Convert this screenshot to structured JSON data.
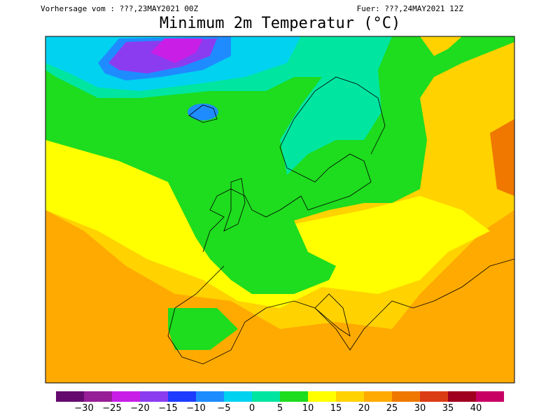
{
  "header": {
    "left": "Vorhersage vom : ???,23MAY2021 00Z",
    "right": "Fuer: ???,24MAY2021 12Z",
    "title": "Minimum 2m Temperatur (°C)"
  },
  "colorbar": {
    "colors": [
      "#640a6e",
      "#961e96",
      "#c81ee6",
      "#8c3cf0",
      "#1e3cff",
      "#1e8cff",
      "#00d2f0",
      "#00e6a0",
      "#1edc1e",
      "#ffff00",
      "#ffd200",
      "#ffaa00",
      "#f07800",
      "#dc3c14",
      "#a0001e",
      "#c80064"
    ],
    "labels": [
      "−30",
      "−25",
      "−20",
      "−15",
      "−10",
      "−5",
      "0",
      "5",
      "10",
      "15",
      "20",
      "25",
      "30",
      "35",
      "40"
    ]
  }
}
